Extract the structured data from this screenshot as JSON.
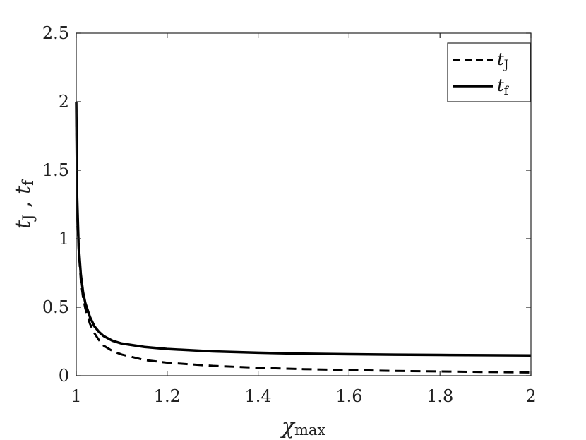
{
  "chart_data": {
    "type": "line",
    "title": "",
    "xlabel": {
      "main": "χ",
      "sub": "max"
    },
    "ylabel": {
      "a_main": "t",
      "a_sub": "J",
      "sep": " , ",
      "b_main": "t",
      "b_sub": "f"
    },
    "xlim": [
      1,
      2
    ],
    "ylim": [
      0,
      2.5
    ],
    "x_ticks": [
      "1",
      "1.2",
      "1.4",
      "1.6",
      "1.8",
      "2"
    ],
    "y_ticks": [
      "0",
      "0.5",
      "1",
      "1.5",
      "2",
      "2.5"
    ],
    "grid": false,
    "legend": "top-right",
    "series": [
      {
        "name": "tJ",
        "legend_main": "t",
        "legend_sub": "J",
        "style": "dashed",
        "color": "#000000",
        "x": [
          1.0,
          1.002,
          1.005,
          1.01,
          1.015,
          1.02,
          1.03,
          1.04,
          1.05,
          1.06,
          1.08,
          1.1,
          1.15,
          1.2,
          1.3,
          1.4,
          1.5,
          1.6,
          1.7,
          1.8,
          1.9,
          2.0
        ],
        "y": [
          2.0,
          1.25,
          0.93,
          0.7,
          0.57,
          0.49,
          0.38,
          0.31,
          0.26,
          0.22,
          0.18,
          0.155,
          0.115,
          0.095,
          0.072,
          0.058,
          0.048,
          0.041,
          0.035,
          0.031,
          0.027,
          0.024
        ]
      },
      {
        "name": "tf",
        "legend_main": "t",
        "legend_sub": "f",
        "style": "solid",
        "color": "#000000",
        "x": [
          1.0,
          1.002,
          1.005,
          1.01,
          1.015,
          1.02,
          1.03,
          1.04,
          1.05,
          1.06,
          1.08,
          1.1,
          1.15,
          1.2,
          1.3,
          1.4,
          1.5,
          1.6,
          1.7,
          1.8,
          1.9,
          2.0
        ],
        "y": [
          2.0,
          1.3,
          0.97,
          0.74,
          0.61,
          0.53,
          0.43,
          0.36,
          0.32,
          0.29,
          0.255,
          0.235,
          0.21,
          0.195,
          0.178,
          0.168,
          0.161,
          0.157,
          0.154,
          0.152,
          0.15,
          0.148
        ]
      }
    ]
  }
}
